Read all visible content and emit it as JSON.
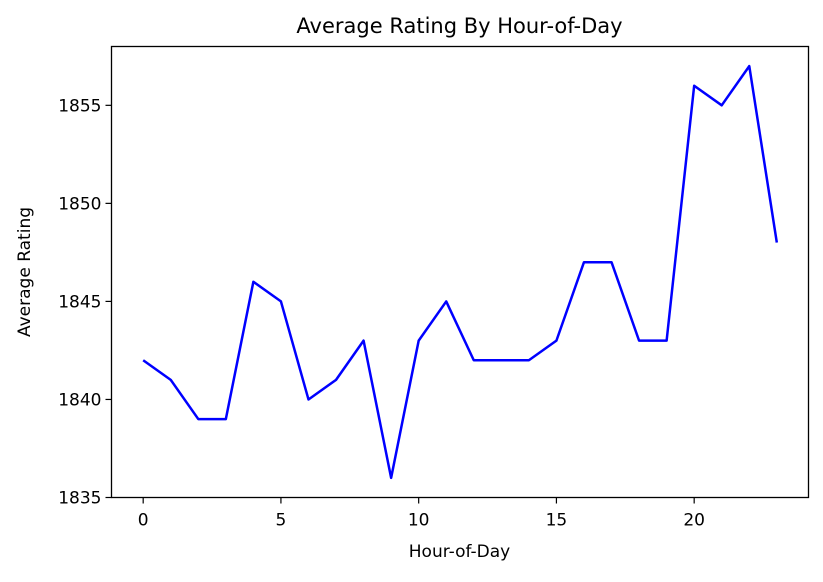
{
  "chart_data": {
    "type": "line",
    "title": "Average Rating By Hour-of-Day",
    "xlabel": "Hour-of-Day",
    "ylabel": "Average Rating",
    "xlim": [
      -1.15,
      24.15
    ],
    "ylim": [
      1835,
      1858
    ],
    "xticks": [
      0,
      5,
      10,
      15,
      20
    ],
    "yticks": [
      1835,
      1840,
      1845,
      1850,
      1855
    ],
    "grid": false,
    "series": [
      {
        "color": "#0000ff",
        "x": [
          0,
          1,
          2,
          3,
          4,
          5,
          6,
          7,
          8,
          9,
          10,
          11,
          12,
          13,
          14,
          15,
          16,
          17,
          18,
          19,
          20,
          21,
          22,
          23
        ],
        "y": [
          1842,
          1841,
          1839,
          1839,
          1846,
          1845,
          1840,
          1841,
          1843,
          1836,
          1843,
          1845,
          1842,
          1842,
          1842,
          1843,
          1847,
          1847,
          1843,
          1843,
          1856,
          1855,
          1857,
          1848
        ]
      }
    ]
  }
}
